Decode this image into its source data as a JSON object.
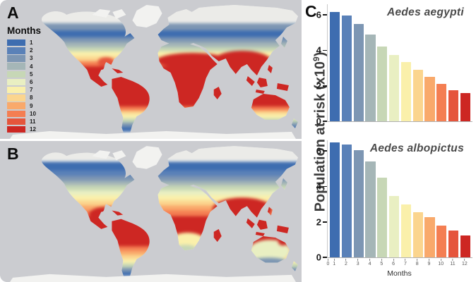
{
  "panels": {
    "a_label": "A",
    "b_label": "B",
    "c_label": "C"
  },
  "legend": {
    "title": "Months",
    "months": [
      "1",
      "2",
      "3",
      "4",
      "5",
      "6",
      "7",
      "8",
      "9",
      "10",
      "11",
      "12"
    ],
    "colors": [
      "#3E6DB0",
      "#5A81B8",
      "#7D96B3",
      "#A5B6B7",
      "#C7D7B6",
      "#E9EFC2",
      "#FAF0AB",
      "#FBD58E",
      "#F9A96B",
      "#F47E52",
      "#E5553C",
      "#CD2723"
    ]
  },
  "map_colors": {
    "ocean": "#cbccd0",
    "land_unsuitable": "#ebebe8",
    "ice": "#f2f2f0"
  },
  "axis": {
    "ylabel_prefix": "Population at risk (x10",
    "ylabel_sup": "9",
    "ylabel_suffix": ")",
    "xlabel": "Months",
    "yticks": [
      0,
      2,
      4,
      6
    ],
    "xticks": [
      "0",
      "1",
      "2",
      "3",
      "4",
      "5",
      "6",
      "7",
      "8",
      "9",
      "10",
      "11",
      "12"
    ]
  },
  "chart_data": [
    {
      "type": "bar",
      "title": "Aedes aegypti",
      "categories": [
        "1",
        "2",
        "3",
        "4",
        "5",
        "6",
        "7",
        "8",
        "9",
        "10",
        "11",
        "12"
      ],
      "values": [
        6.15,
        5.95,
        5.5,
        4.9,
        4.2,
        3.75,
        3.35,
        2.9,
        2.5,
        2.1,
        1.75,
        1.6
      ],
      "xlabel": "Months",
      "ylabel": "Population at risk (x10^9)",
      "ylim": [
        0,
        6.6
      ],
      "yticks": [
        0,
        2,
        4,
        6
      ],
      "grid": false,
      "bar_colors_from_legend": true
    },
    {
      "type": "bar",
      "title": "Aedes albopictus",
      "categories": [
        "1",
        "2",
        "3",
        "4",
        "5",
        "6",
        "7",
        "8",
        "9",
        "10",
        "11",
        "12"
      ],
      "values": [
        6.5,
        6.35,
        6.05,
        5.4,
        4.5,
        3.45,
        3.0,
        2.55,
        2.25,
        1.8,
        1.5,
        1.25
      ],
      "xlabel": "Months",
      "ylabel": "Population at risk (x10^9)",
      "ylim": [
        0,
        6.6
      ],
      "yticks": [
        0,
        2,
        4,
        6
      ],
      "grid": false,
      "bar_colors_from_legend": true
    }
  ]
}
